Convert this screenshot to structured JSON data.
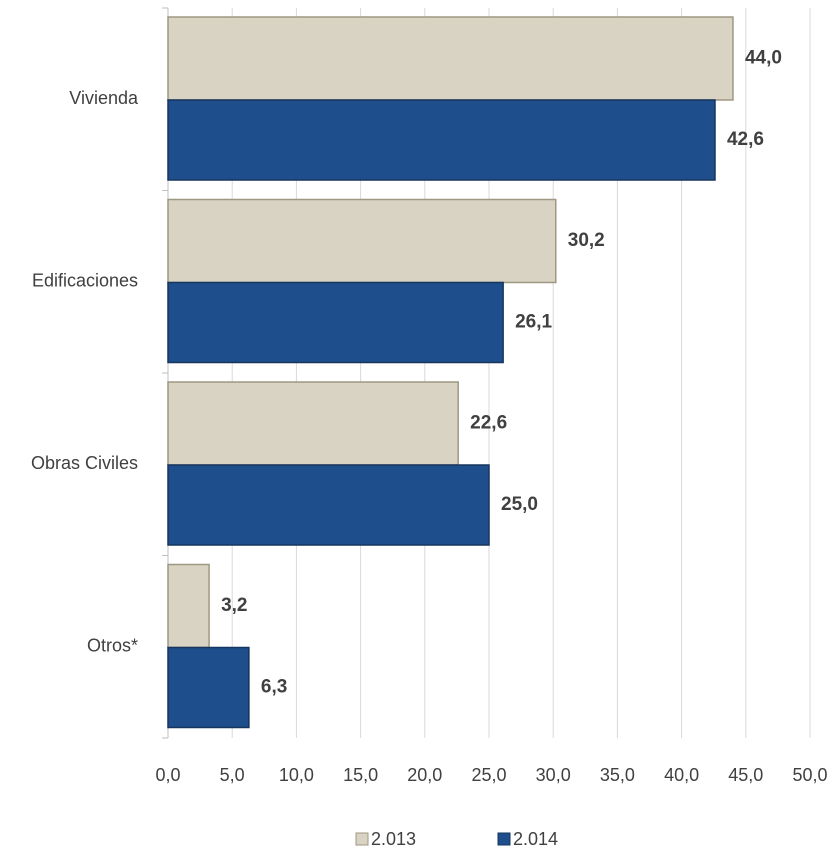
{
  "chart_data": {
    "type": "bar",
    "orientation": "horizontal",
    "categories": [
      "Vivienda",
      "Edificaciones",
      "Obras Civiles",
      "Otros*"
    ],
    "series": [
      {
        "name": "2.013",
        "color": "#d9d3c3",
        "label_color": "#000000",
        "values": [
          44.0,
          30.2,
          22.6,
          3.2
        ],
        "value_labels": [
          "44,0",
          "30,2",
          "22,6",
          "3,2"
        ]
      },
      {
        "name": "2.014",
        "color": "#1f4e8c",
        "label_color": "#1f4e8c",
        "values": [
          42.6,
          26.1,
          25.0,
          6.3
        ],
        "value_labels": [
          "42,6",
          "26,1",
          "25,0",
          "6,3"
        ]
      }
    ],
    "xlim": [
      0,
      50
    ],
    "xticks": [
      {
        "value": 0,
        "label": "0,0"
      },
      {
        "value": 5,
        "label": "5,0"
      },
      {
        "value": 10,
        "label": "10,0"
      },
      {
        "value": 15,
        "label": "15,0"
      },
      {
        "value": 20,
        "label": "20,0"
      },
      {
        "value": 25,
        "label": "25,0"
      },
      {
        "value": 30,
        "label": "30,0"
      },
      {
        "value": 35,
        "label": "35,0"
      },
      {
        "value": 40,
        "label": "40,0"
      },
      {
        "value": 45,
        "label": "45,0"
      },
      {
        "value": 50,
        "label": "50,0"
      }
    ],
    "grid": true,
    "legend": "bottom"
  }
}
